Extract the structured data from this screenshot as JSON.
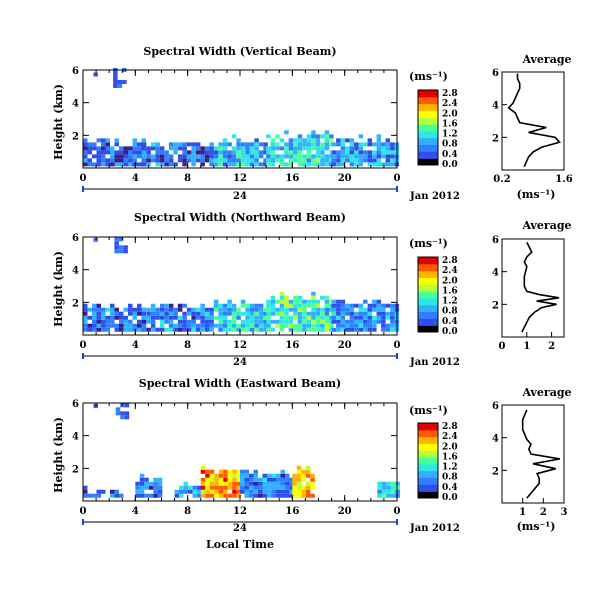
{
  "figure": {
    "xlabel": "Local Time",
    "date_label": "Jan 2012",
    "day_label": "24"
  },
  "colors": {
    "colormap": [
      "#000000",
      "#3a1e8c",
      "#2f4fe8",
      "#2f7fff",
      "#31b0ff",
      "#2ee6e6",
      "#49ff9a",
      "#b8ff3a",
      "#ffff00",
      "#ffb400",
      "#ff5a00",
      "#e00000"
    ]
  },
  "chart_data": [
    {
      "type": "heatmap",
      "title": "Spectral Width (Vertical Beam)",
      "ylabel": "Height (km)",
      "x_ticks": [
        "0",
        "4",
        "8",
        "12",
        "16",
        "20",
        "0"
      ],
      "y_ticks": [
        "2",
        "4",
        "6"
      ],
      "xlim": [
        0,
        24
      ],
      "ylim": [
        0,
        6
      ],
      "colorbar": {
        "unit": "(ms⁻¹)",
        "tick_labels": [
          "0.0",
          "0.4",
          "0.8",
          "1.2",
          "1.6",
          "2.0",
          "2.4",
          "2.8"
        ],
        "range": [
          0,
          2.8
        ]
      },
      "echo_layer": [
        {
          "x0": 0.0,
          "x1": 4.5,
          "base": 0.1,
          "top": 1.5,
          "level": 0.55
        },
        {
          "x0": 4.5,
          "x1": 10.0,
          "base": 0.1,
          "top": 1.4,
          "level": 0.6
        },
        {
          "x0": 10.0,
          "x1": 14.0,
          "base": 0.1,
          "top": 1.6,
          "level": 0.9
        },
        {
          "x0": 14.0,
          "x1": 19.0,
          "base": 0.1,
          "top": 1.9,
          "level": 1.1
        },
        {
          "x0": 19.0,
          "x1": 24.0,
          "base": 0.1,
          "top": 1.6,
          "level": 0.7
        }
      ],
      "patches": [
        {
          "x0": 2.3,
          "x1": 3.2,
          "y0": 4.9,
          "y1": 5.9,
          "level": 0.5
        },
        {
          "x0": 0.8,
          "x1": 1.0,
          "y0": 5.6,
          "y1": 5.8,
          "level": 0.5
        }
      ],
      "profile": {
        "title": "Average",
        "xlabel": "(ms⁻¹)",
        "x_ticks": [
          "0.2",
          "1.6"
        ],
        "xlim": [
          0.2,
          1.6
        ],
        "y_ticks": [
          "2",
          "4",
          "6"
        ],
        "ylim": [
          0,
          6
        ],
        "heights": [
          0.2,
          0.5,
          0.8,
          1.1,
          1.4,
          1.7,
          2.0,
          2.3,
          2.6,
          2.9,
          3.2,
          3.5,
          3.8,
          4.1,
          4.4,
          4.7,
          5.0,
          5.3,
          5.6,
          5.9
        ],
        "values": [
          0.7,
          0.75,
          0.8,
          0.9,
          1.1,
          1.5,
          1.4,
          0.8,
          1.2,
          0.6,
          0.55,
          0.5,
          0.35,
          0.45,
          0.5,
          0.55,
          0.6,
          0.6,
          0.55,
          0.55
        ]
      }
    },
    {
      "type": "heatmap",
      "title": "Spectral Width (Northward Beam)",
      "ylabel": "Height (km)",
      "x_ticks": [
        "0",
        "4",
        "8",
        "12",
        "16",
        "20",
        "0"
      ],
      "y_ticks": [
        "2",
        "4",
        "6"
      ],
      "xlim": [
        0,
        24
      ],
      "ylim": [
        0,
        6
      ],
      "colorbar": {
        "unit": "(ms⁻¹)",
        "tick_labels": [
          "0.0",
          "0.4",
          "0.8",
          "1.2",
          "1.6",
          "2.0",
          "2.4",
          "2.8"
        ],
        "range": [
          0,
          2.8
        ]
      },
      "echo_layer": [
        {
          "x0": 0.0,
          "x1": 4.5,
          "base": 0.2,
          "top": 1.7,
          "level": 0.6
        },
        {
          "x0": 4.5,
          "x1": 10.0,
          "base": 0.2,
          "top": 1.7,
          "level": 0.65
        },
        {
          "x0": 10.0,
          "x1": 14.0,
          "base": 0.2,
          "top": 1.9,
          "level": 1.0
        },
        {
          "x0": 14.0,
          "x1": 19.0,
          "base": 0.2,
          "top": 2.2,
          "level": 1.2
        },
        {
          "x0": 19.0,
          "x1": 24.0,
          "base": 0.2,
          "top": 1.9,
          "level": 0.7
        }
      ],
      "patches": [
        {
          "x0": 2.4,
          "x1": 3.3,
          "y0": 5.0,
          "y1": 5.9,
          "level": 0.5
        },
        {
          "x0": 0.8,
          "x1": 1.0,
          "y0": 5.7,
          "y1": 5.9,
          "level": 0.5
        }
      ],
      "profile": {
        "title": "Average",
        "xlabel": "",
        "x_ticks": [
          "0",
          "1",
          "2"
        ],
        "xlim": [
          0,
          2.5
        ],
        "y_ticks": [
          "2",
          "4",
          "6"
        ],
        "ylim": [
          0,
          6
        ],
        "heights": [
          0.3,
          0.6,
          0.9,
          1.2,
          1.5,
          1.8,
          2.0,
          2.2,
          2.4,
          2.6,
          2.8,
          3.1,
          3.4,
          3.7,
          4.0,
          4.3,
          4.6,
          4.9,
          5.2,
          5.5,
          5.8
        ],
        "values": [
          0.8,
          0.9,
          1.0,
          1.1,
          1.3,
          1.6,
          2.2,
          1.4,
          2.3,
          1.5,
          1.0,
          0.9,
          0.9,
          0.9,
          0.95,
          1.0,
          0.9,
          1.0,
          1.2,
          1.1,
          1.0
        ]
      }
    },
    {
      "type": "heatmap",
      "title": "Spectral Width (Eastward Beam)",
      "ylabel": "Height (km)",
      "x_ticks": [
        "0",
        "4",
        "8",
        "12",
        "16",
        "20",
        "0"
      ],
      "y_ticks": [
        "2",
        "4",
        "6"
      ],
      "xlim": [
        0,
        24
      ],
      "ylim": [
        0,
        6
      ],
      "colorbar": {
        "unit": "(ms⁻¹)",
        "tick_labels": [
          "0.0",
          "0.4",
          "0.8",
          "1.2",
          "1.6",
          "2.0",
          "2.4",
          "2.8"
        ],
        "range": [
          0,
          2.8
        ]
      },
      "echo_layer": [
        {
          "x0": 0.0,
          "x1": 3.0,
          "base": 0.2,
          "top": 0.5,
          "level": 0.5
        },
        {
          "x0": 4.0,
          "x1": 6.0,
          "base": 0.2,
          "top": 1.2,
          "level": 0.6
        },
        {
          "x0": 7.0,
          "x1": 9.0,
          "base": 0.2,
          "top": 0.8,
          "level": 0.8
        },
        {
          "x0": 9.0,
          "x1": 12.0,
          "base": 0.2,
          "top": 1.8,
          "level": 2.2
        },
        {
          "x0": 12.0,
          "x1": 16.0,
          "base": 0.2,
          "top": 1.6,
          "level": 0.6
        },
        {
          "x0": 16.0,
          "x1": 17.5,
          "base": 0.2,
          "top": 1.9,
          "level": 2.0
        },
        {
          "x0": 22.5,
          "x1": 24.0,
          "base": 0.2,
          "top": 1.0,
          "level": 1.0
        }
      ],
      "patches": [
        {
          "x0": 2.5,
          "x1": 3.3,
          "y0": 5.0,
          "y1": 5.8,
          "level": 0.5
        },
        {
          "x0": 0.8,
          "x1": 1.0,
          "y0": 5.7,
          "y1": 5.9,
          "level": 0.5
        }
      ],
      "profile": {
        "title": "Average",
        "xlabel": "(ms⁻¹)",
        "x_ticks": [
          "1",
          "2",
          "3"
        ],
        "xlim": [
          0,
          3
        ],
        "y_ticks": [
          "2",
          "4",
          "6"
        ],
        "ylim": [
          0,
          6
        ],
        "heights": [
          0.3,
          0.6,
          0.9,
          1.2,
          1.5,
          1.8,
          2.1,
          2.4,
          2.7,
          3.0,
          3.3,
          3.6,
          3.9,
          4.2,
          4.5,
          4.8,
          5.1,
          5.4,
          5.7
        ],
        "values": [
          1.2,
          1.4,
          1.6,
          1.8,
          1.8,
          1.7,
          2.6,
          1.5,
          2.8,
          1.4,
          1.3,
          1.4,
          1.2,
          1.1,
          1.0,
          1.0,
          1.0,
          1.1,
          1.2
        ]
      }
    }
  ]
}
